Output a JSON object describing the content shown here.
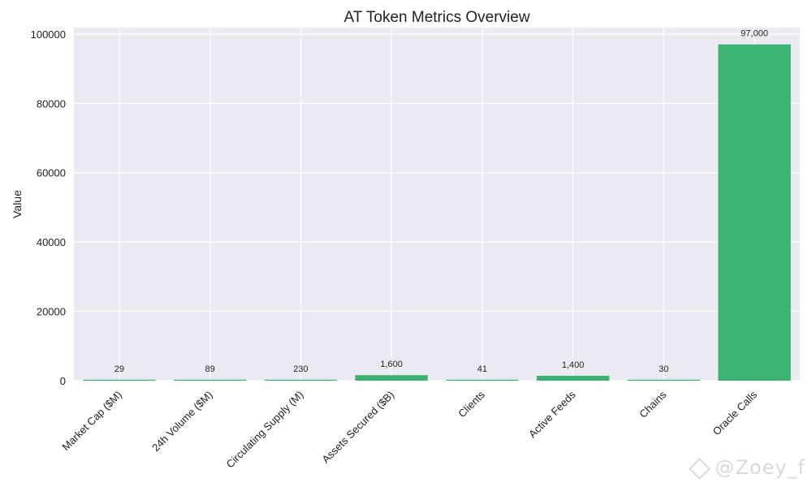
{
  "chart_data": {
    "type": "bar",
    "title": "AT Token Metrics Overview",
    "xlabel": "",
    "ylabel": "Value",
    "categories": [
      "Market Cap ($M)",
      "24h Volume ($M)",
      "Circulating Supply (M)",
      "Assets Secured ($B)",
      "Clients",
      "Active Feeds",
      "Chains",
      "Oracle Calls"
    ],
    "values": [
      29,
      89,
      230,
      1600,
      41,
      1400,
      30,
      97000
    ],
    "data_labels": [
      "29",
      "89",
      "230",
      "1,600",
      "41",
      "1,400",
      "30",
      "97,000"
    ],
    "ylim": [
      0,
      101850
    ],
    "yticks": [
      0,
      20000,
      40000,
      60000,
      80000,
      100000
    ],
    "ytick_labels": [
      "0",
      "20000",
      "40000",
      "60000",
      "80000",
      "100000"
    ],
    "grid": true,
    "bar_color": "#3cb371",
    "plot_background": "#eaeaf2"
  },
  "watermark": {
    "text": "@Zoey_f",
    "icon": "binance-diamond-icon"
  }
}
